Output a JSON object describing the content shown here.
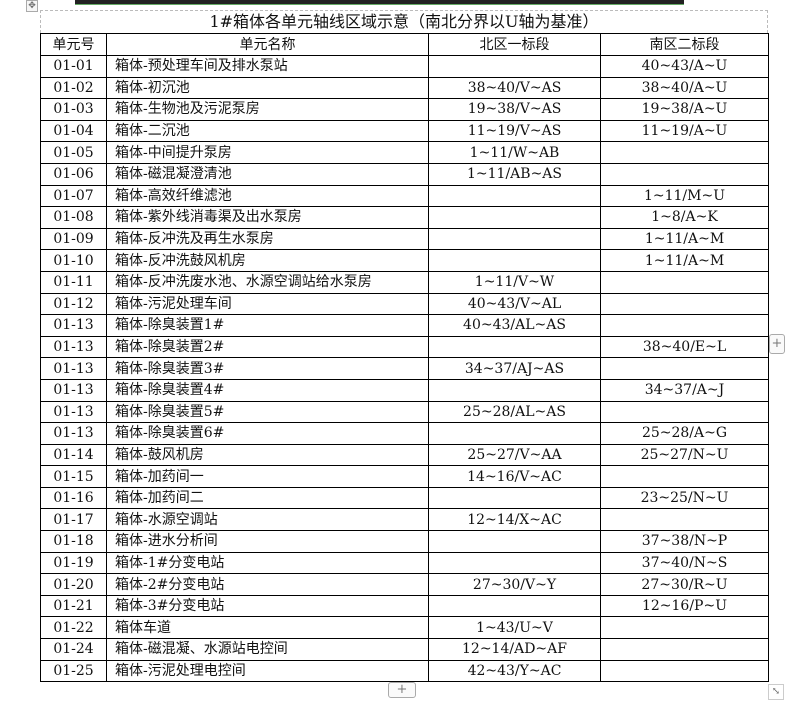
{
  "title": "1#箱体各单元轴线区域示意（南北分界以U轴为基准）",
  "columns": [
    "单元号",
    "单元名称",
    "北区一标段",
    "南区二标段"
  ],
  "rows": [
    [
      "01-01",
      "箱体-预处理车间及排水泵站",
      "",
      "40~43/A~U"
    ],
    [
      "01-02",
      "箱体-初沉池",
      "38~40/V~AS",
      "38~40/A~U"
    ],
    [
      "01-03",
      "箱体-生物池及污泥泵房",
      "19~38/V~AS",
      "19~38/A~U"
    ],
    [
      "01-04",
      "箱体-二沉池",
      "11~19/V~AS",
      "11~19/A~U"
    ],
    [
      "01-05",
      "箱体-中间提升泵房",
      "1~11/W~AB",
      ""
    ],
    [
      "01-06",
      "箱体-磁混凝澄清池",
      "1~11/AB~AS",
      ""
    ],
    [
      "01-07",
      "箱体-高效纤维滤池",
      "",
      "1~11/M~U"
    ],
    [
      "01-08",
      "箱体-紫外线消毒渠及出水泵房",
      "",
      "1~8/A~K"
    ],
    [
      "01-09",
      "箱体-反冲洗及再生水泵房",
      "",
      "1~11/A~M"
    ],
    [
      "01-10",
      "箱体-反冲洗鼓风机房",
      "",
      "1~11/A~M"
    ],
    [
      "01-11",
      "箱体-反冲洗废水池、水源空调站给水泵房",
      "1~11/V~W",
      ""
    ],
    [
      "01-12",
      "箱体-污泥处理车间",
      "40~43/V~AL",
      ""
    ],
    [
      "01-13",
      "箱体-除臭装置1#",
      "40~43/AL~AS",
      ""
    ],
    [
      "01-13",
      "箱体-除臭装置2#",
      "",
      "38~40/E~L"
    ],
    [
      "01-13",
      "箱体-除臭装置3#",
      "34~37/AJ~AS",
      ""
    ],
    [
      "01-13",
      "箱体-除臭装置4#",
      "",
      "34~37/A~J"
    ],
    [
      "01-13",
      "箱体-除臭装置5#",
      "25~28/AL~AS",
      ""
    ],
    [
      "01-13",
      "箱体-除臭装置6#",
      "",
      "25~28/A~G"
    ],
    [
      "01-14",
      "箱体-鼓风机房",
      "25~27/V~AA",
      "25~27/N~U"
    ],
    [
      "01-15",
      "箱体-加药间一",
      "14~16/V~AC",
      ""
    ],
    [
      "01-16",
      "箱体-加药间二",
      "",
      "23~25/N~U"
    ],
    [
      "01-17",
      "箱体-水源空调站",
      "12~14/X~AC",
      ""
    ],
    [
      "01-18",
      "箱体-进水分析间",
      "",
      "37~38/N~P"
    ],
    [
      "01-19",
      "箱体-1#分变电站",
      "",
      "37~40/N~S"
    ],
    [
      "01-20",
      "箱体-2#分变电站",
      "27~30/V~Y",
      "27~30/R~U"
    ],
    [
      "01-21",
      "箱体-3#分变电站",
      "",
      "12~16/P~U"
    ],
    [
      "01-22",
      "箱体车道",
      "1~43/U~V",
      ""
    ],
    [
      "01-24",
      "箱体-磁混凝、水源站电控间",
      "12~14/AD~AF",
      ""
    ],
    [
      "01-25",
      "箱体-污泥处理电控间",
      "42~43/Y~AC",
      ""
    ]
  ],
  "controls": {
    "add_symbol": "+",
    "move_symbol": "✥",
    "resize_symbol": "⤡"
  }
}
